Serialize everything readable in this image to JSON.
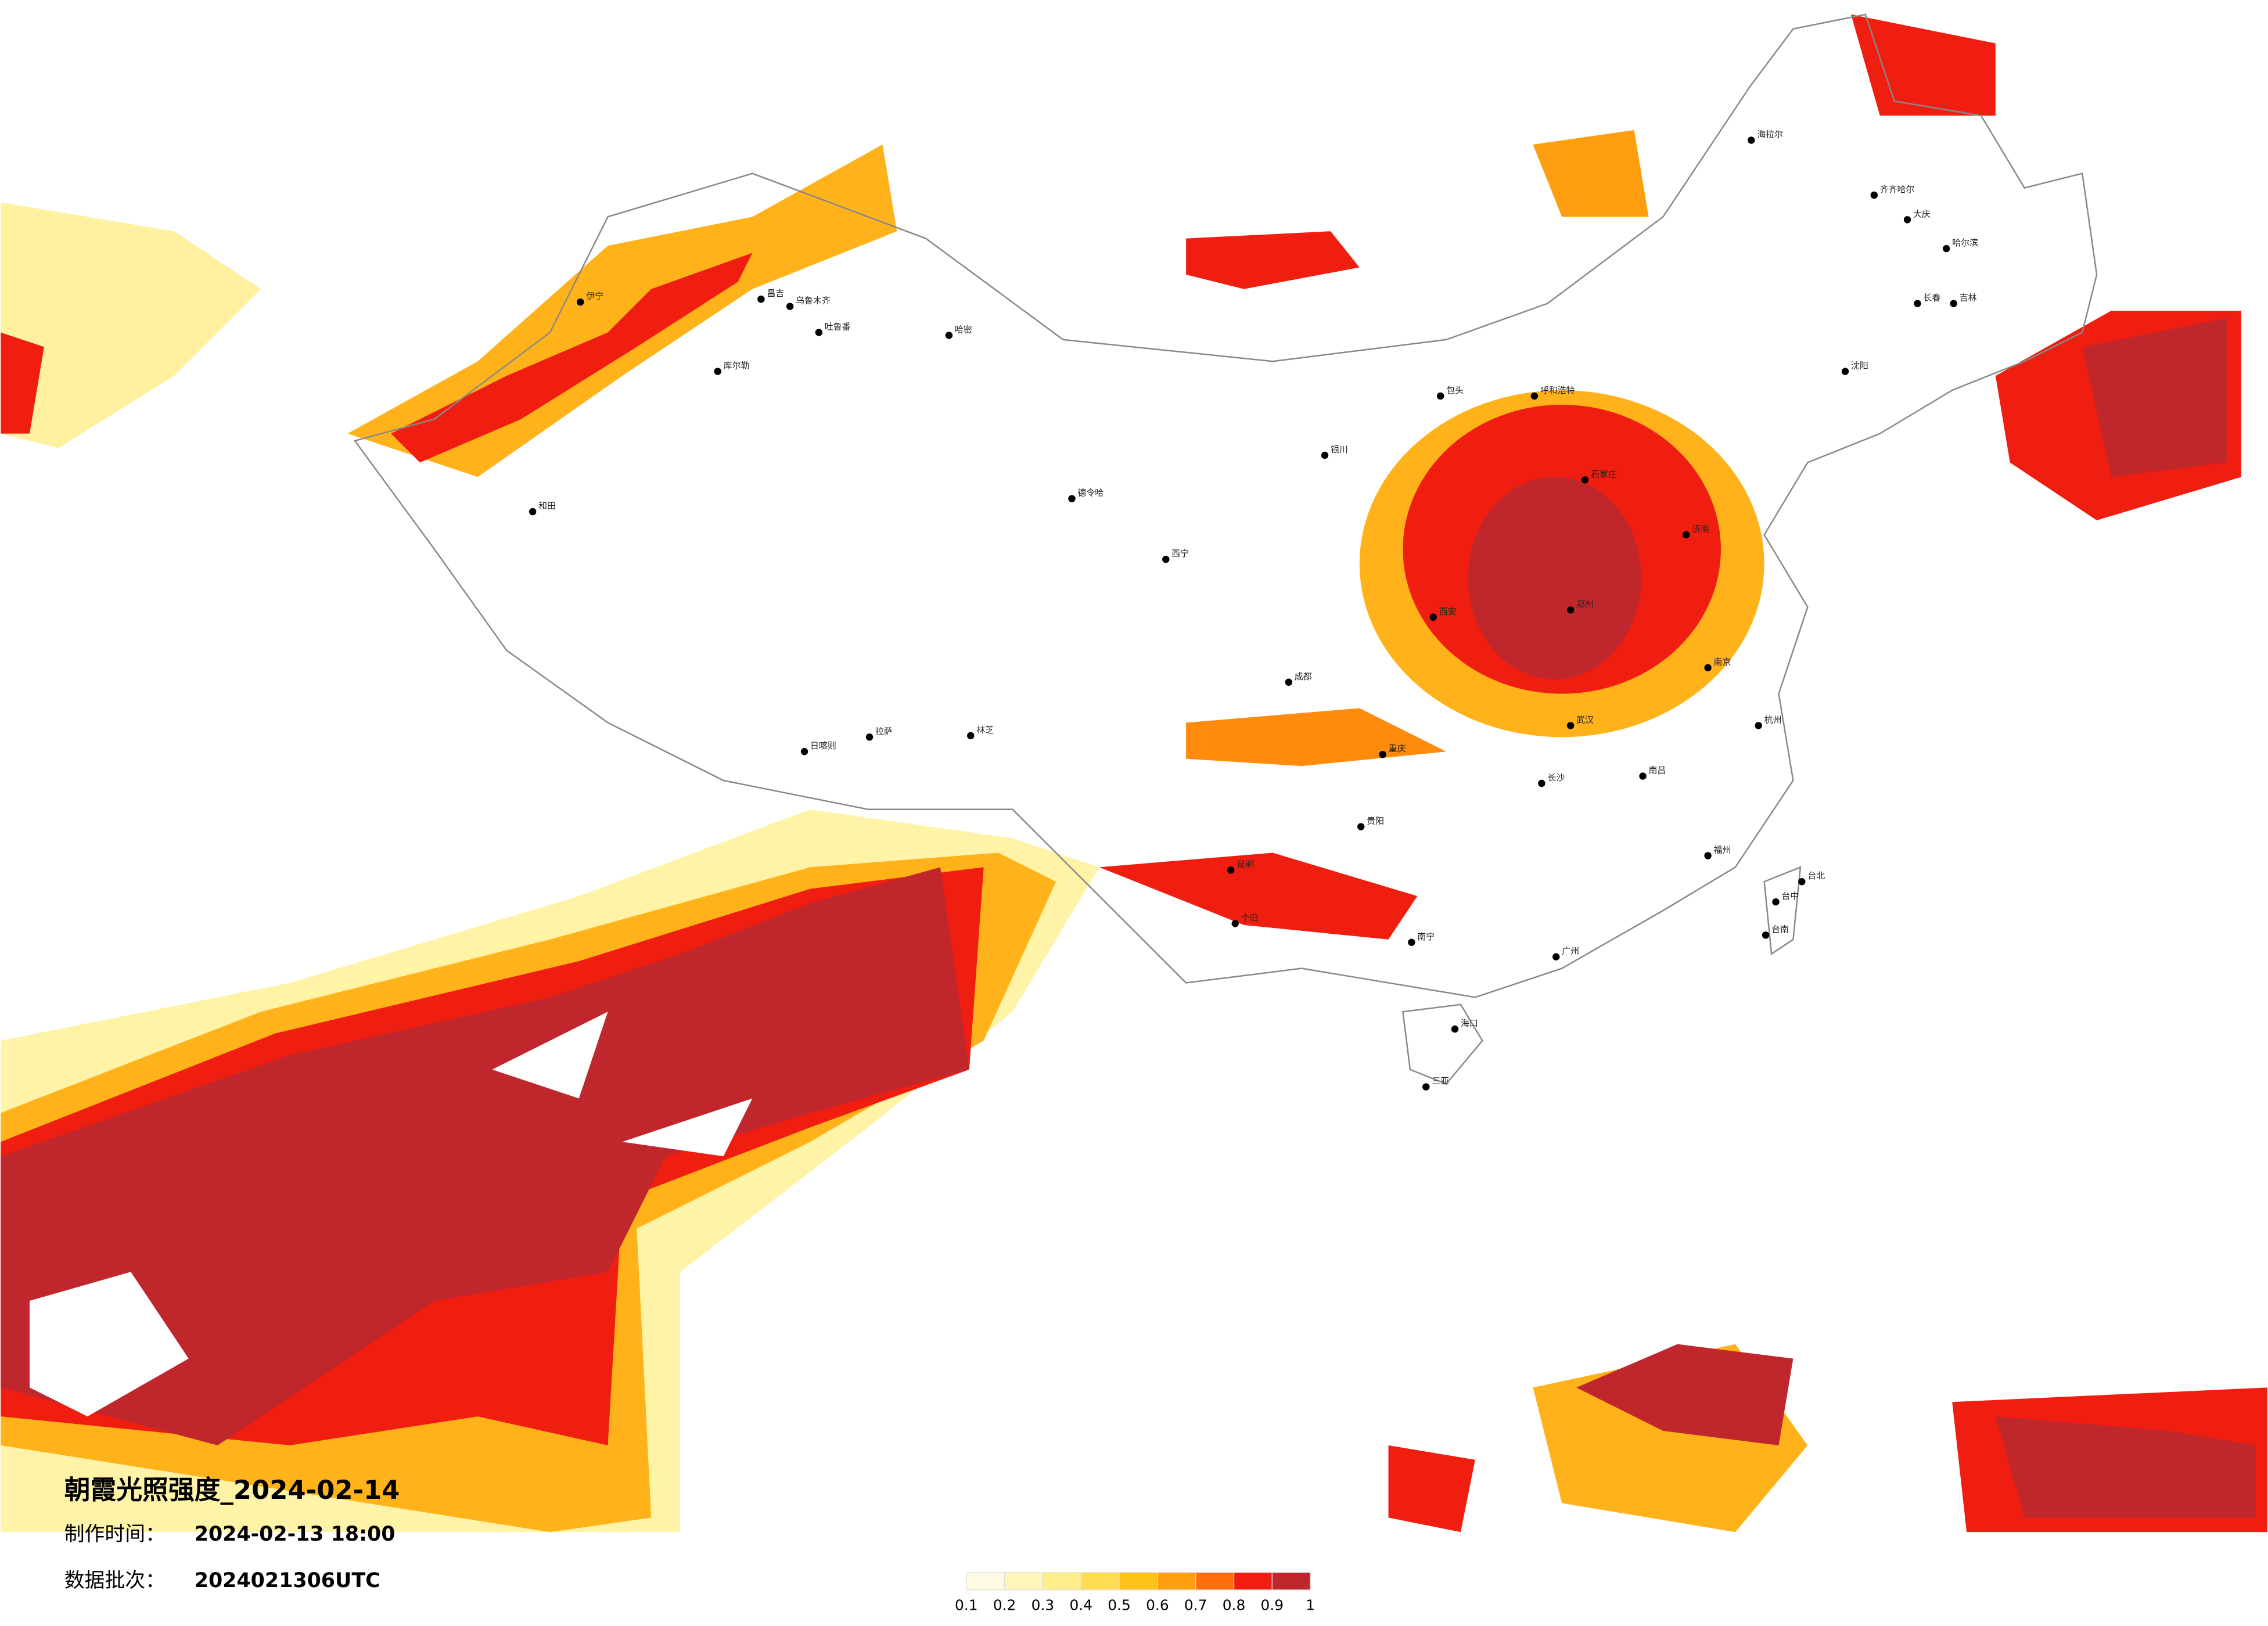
{
  "title": "朝霞光照强度_2024-02-14",
  "made_label": "制作时间：",
  "made_time": "2024-02-13 18:00",
  "batch_label": "数据批次：",
  "batch": "2024021306UTC",
  "colorbar": {
    "ticks": [
      0.1,
      0.2,
      0.3,
      0.4,
      0.5,
      0.6,
      0.7,
      0.8,
      0.9,
      1
    ],
    "colors": [
      "#fffbe3",
      "#fff6b8",
      "#ffee8a",
      "#ffdc52",
      "#ffc21a",
      "#ff9f0f",
      "#ff6e0a",
      "#f01e10",
      "#c0272d"
    ]
  },
  "cities": [
    "海拉尔",
    "齐齐哈尔",
    "大庆",
    "哈尔滨",
    "长春",
    "吉林",
    "沈阳",
    "呼和浩特",
    "包头",
    "银川",
    "石家庄",
    "济南",
    "郑州",
    "西安",
    "成都",
    "重庆",
    "贵阳",
    "昆明",
    "南宁",
    "广州",
    "海口",
    "三亚",
    "台北",
    "台中",
    "台南",
    "福州",
    "杭州",
    "南京",
    "武汉",
    "长沙",
    "南昌",
    "个旧",
    "哈密",
    "伊宁",
    "昌吉",
    "乌鲁木齐",
    "吐鲁番",
    "库尔勒",
    "和田",
    "日喀则",
    "拉萨",
    "林芝",
    "德令哈",
    "西宁"
  ]
}
